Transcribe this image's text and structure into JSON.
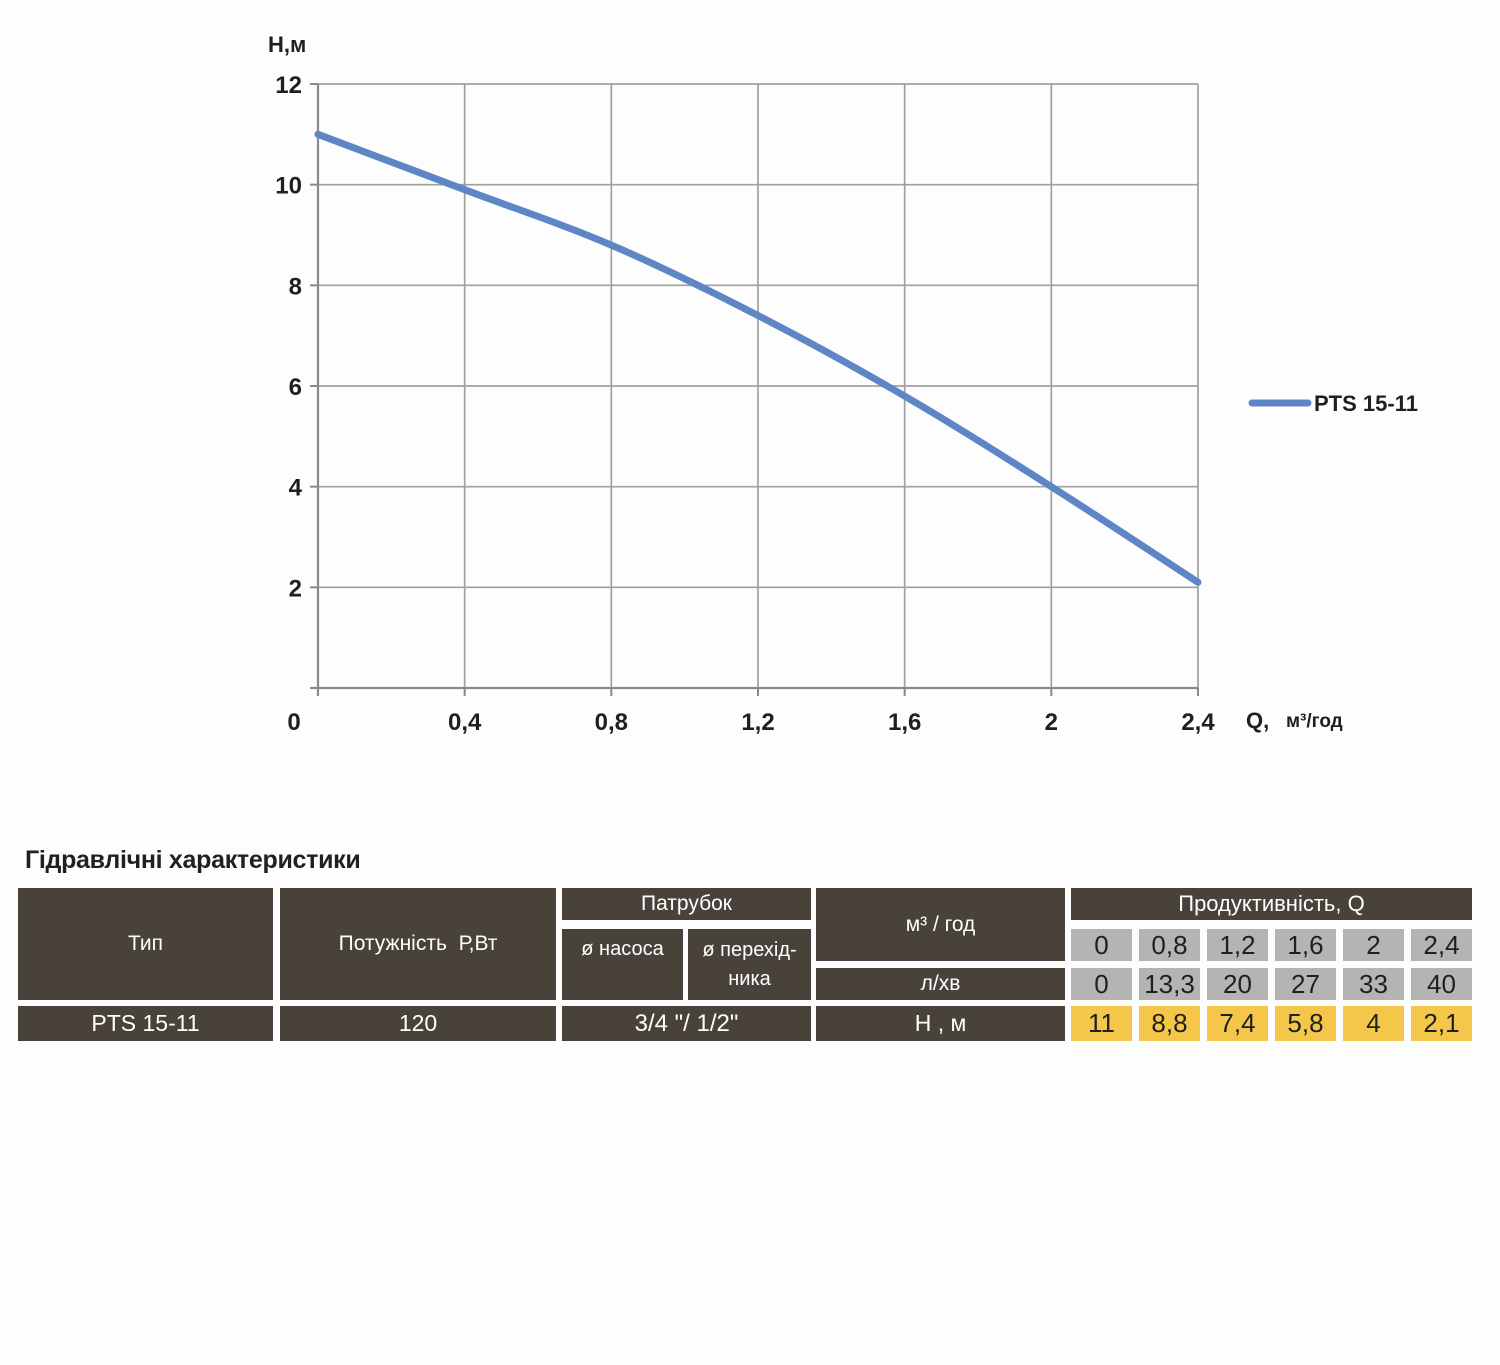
{
  "colors": {
    "page_bg": "#fdfdfd",
    "dark": "#48423b",
    "gray": "#b4b4b4",
    "yellow": "#f4c64a",
    "curve": "#5e86c6",
    "grid": "#a0a0a0",
    "axis": "#8a8a8a",
    "text_dark": "#1f1f1f",
    "text_light": "#ffffff"
  },
  "chart_data": {
    "type": "line",
    "title": "",
    "xlabel": "Q, м³/год",
    "xlabel_q": "Q,",
    "xlabel_unit": "м³/год",
    "ylabel": "Н,м",
    "xlim": [
      0,
      2.4
    ],
    "ylim": [
      0,
      12
    ],
    "x_ticks": [
      0,
      0.4,
      0.8,
      1.2,
      1.6,
      2,
      2.4
    ],
    "x_tick_labels": [
      "0",
      "0,4",
      "0,8",
      "1,2",
      "1,6",
      "2",
      "2,4"
    ],
    "y_ticks": [
      2,
      4,
      6,
      8,
      10,
      12
    ],
    "y_tick_labels": [
      "2",
      "4",
      "6",
      "8",
      "10",
      "12"
    ],
    "grid": true,
    "legend_position": "right",
    "series": [
      {
        "name": "PTS 15-11",
        "color": "#5e86c6",
        "x": [
          0,
          0.4,
          0.8,
          1.2,
          1.6,
          2.0,
          2.4
        ],
        "y": [
          11,
          9.9,
          8.8,
          7.4,
          5.8,
          4,
          2.1
        ]
      }
    ]
  },
  "table": {
    "title": "Гідравлічні характеристики",
    "headers": {
      "type": "Тип",
      "power": "Потужність  Р,Вт",
      "pipe_group": "Патрубок",
      "pipe_pump": "ø насоса",
      "pipe_adapter_line1": "ø перехід-",
      "pipe_adapter_line2": "ника",
      "m3h": "м³ / год",
      "lmin": "л/хв",
      "productivity": "Продуктивність, Q"
    },
    "q_m3h": [
      "0",
      "0,8",
      "1,2",
      "1,6",
      "2",
      "2,4"
    ],
    "q_lmin": [
      "0",
      "13,3",
      "20",
      "27",
      "33",
      "40"
    ],
    "row": {
      "type": "PTS 15-11",
      "power": "120",
      "pipe": "3/4 \"/ 1/2\"",
      "param": "Н , м",
      "h_values": [
        "11",
        "8,8",
        "7,4",
        "5,8",
        "4",
        "2,1"
      ]
    }
  }
}
